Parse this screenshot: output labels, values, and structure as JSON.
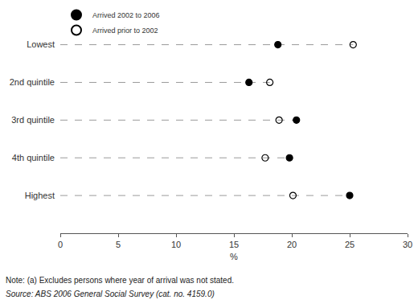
{
  "chart_data": {
    "type": "dot",
    "orientation": "horizontal",
    "categories": [
      "Lowest",
      "2nd quintile",
      "3rd quintile",
      "4th quintile",
      "Highest"
    ],
    "series": [
      {
        "name": "Arrived 2002 to 2006",
        "color": "#000000",
        "marker": "circle",
        "values": [
          18.8,
          16.3,
          20.4,
          19.8,
          25.0
        ]
      },
      {
        "name": "Arrived prior to 2002",
        "color": "#000000",
        "marker": "circle-open",
        "values": [
          25.3,
          18.1,
          18.9,
          17.7,
          20.1
        ]
      }
    ],
    "x_label": "%",
    "xlim": [
      0,
      30
    ],
    "xticks": [
      0,
      5,
      10,
      15,
      20,
      25,
      30
    ],
    "grid": false,
    "legend": "upper left",
    "notes": [
      "Note: (a) Excludes persons where year of arrival was not stated.",
      "Source: ABS 2006 General Social Survey (cat. no. 4159.0)"
    ]
  }
}
